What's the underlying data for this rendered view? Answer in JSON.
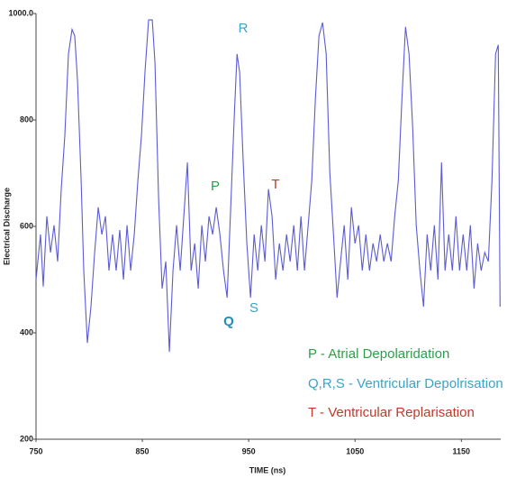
{
  "chart_data": {
    "type": "line",
    "x_label": "TIME (ns)",
    "y_label": "Electrical Discharge",
    "xlim": [
      750,
      1187
    ],
    "ylim": [
      200,
      1000
    ],
    "xticks": [
      750,
      850,
      950,
      1050,
      1150
    ],
    "yticks": [
      200,
      400,
      600,
      800,
      {
        "value": 1000,
        "label": "1000.0"
      }
    ],
    "grid": false,
    "x": [
      750,
      754.2,
      756.8,
      760.2,
      763.6,
      766.9,
      770.3,
      773.7,
      777.1,
      780.5,
      783.9,
      786.4,
      789,
      792.4,
      794.9,
      798.3,
      801.7,
      805.1,
      808.5,
      811.9,
      815.3,
      818.6,
      822,
      825.4,
      828.8,
      832.2,
      835.6,
      839,
      842.4,
      845.8,
      849.2,
      852.5,
      855.9,
      859.3,
      861.9,
      865.3,
      868.6,
      872,
      875.4,
      878.8,
      882.2,
      885.6,
      889,
      892.4,
      895.8,
      899.2,
      902.5,
      905.9,
      909.3,
      912.7,
      916.1,
      919.5,
      922.9,
      926.3,
      929.7,
      933.1,
      936.4,
      939,
      941.5,
      944.9,
      948.3,
      951.7,
      955.1,
      958.5,
      961.9,
      965.3,
      968.6,
      972,
      975.4,
      978.8,
      982.2,
      985.6,
      989,
      992.4,
      995.8,
      999.2,
      1002.5,
      1005.9,
      1009.3,
      1012.7,
      1016.1,
      1019.5,
      1022.9,
      1026.3,
      1029.7,
      1033.1,
      1036.4,
      1039.8,
      1043.2,
      1046.6,
      1050,
      1053.4,
      1056.8,
      1060.2,
      1063.6,
      1066.9,
      1070.3,
      1073.7,
      1077.1,
      1080.5,
      1083.9,
      1087.3,
      1090.7,
      1094.1,
      1097.5,
      1100.8,
      1104.2,
      1107.6,
      1111,
      1114.4,
      1117.8,
      1121.2,
      1124.6,
      1128,
      1131.4,
      1134.7,
      1138.1,
      1141.5,
      1144.9,
      1148.3,
      1151.7,
      1155.1,
      1158.5,
      1161.9,
      1165.3,
      1168.6,
      1172,
      1175.4,
      1178.8,
      1182.2,
      1184.7,
      1186.4
    ],
    "series": [
      {
        "color": "#5b5bd6",
        "values": [
          500,
          585,
          487,
          619,
          551,
          602,
          534,
          670,
          771,
          924,
          970,
          958,
          873,
          686,
          517,
          381,
          449,
          551,
          636,
          585,
          619,
          517,
          585,
          517,
          593,
          500,
          602,
          517,
          585,
          686,
          771,
          890,
          988,
          988,
          907,
          653,
          483,
          534,
          364,
          517,
          602,
          517,
          619,
          720,
          517,
          568,
          483,
          602,
          534,
          619,
          585,
          636,
          585,
          517,
          466,
          636,
          805,
          924,
          890,
          720,
          568,
          466,
          585,
          517,
          602,
          534,
          670,
          619,
          500,
          568,
          517,
          585,
          534,
          602,
          517,
          619,
          517,
          602,
          686,
          839,
          958,
          983,
          924,
          703,
          585,
          466,
          534,
          602,
          500,
          636,
          568,
          602,
          517,
          585,
          517,
          568,
          534,
          585,
          534,
          568,
          534,
          619,
          686,
          839,
          975,
          924,
          788,
          602,
          517,
          449,
          585,
          517,
          602,
          500,
          720,
          517,
          585,
          517,
          619,
          517,
          585,
          517,
          602,
          483,
          568,
          517,
          551,
          534,
          686,
          924,
          941,
          449
        ]
      }
    ],
    "annotations": [
      {
        "text": "P",
        "color": "#2e9e4a"
      },
      {
        "text": "Q",
        "color": "#1f8fb5"
      },
      {
        "text": "R",
        "color": "#3aa3c8"
      },
      {
        "text": "S",
        "color": "#3aa3c8"
      },
      {
        "text": "T",
        "color": "#c0392b"
      },
      {
        "text": "P - Atrial Depolaridation",
        "color": "#2e9e4a"
      },
      {
        "text": "Q,R,S - Ventricular Depolrisation",
        "color": "#3aa3c8"
      },
      {
        "text": "T - Ventricular Replarisation",
        "color": "#c0392b"
      }
    ]
  }
}
